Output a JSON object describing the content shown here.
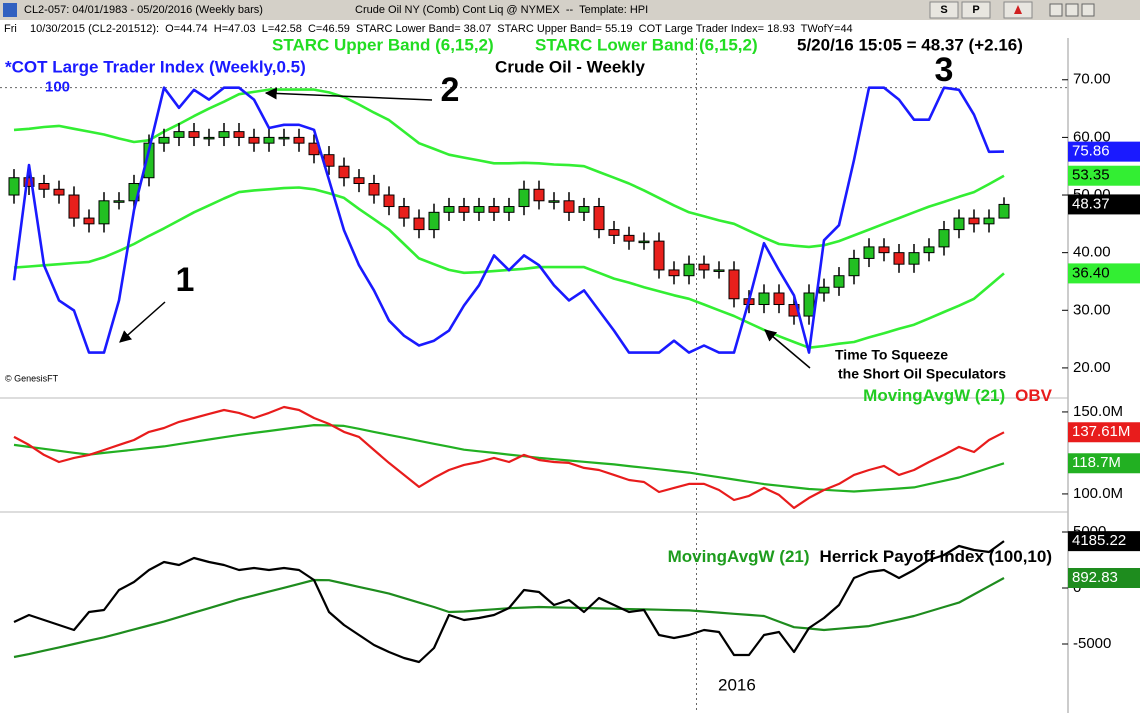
{
  "window": {
    "title": "CL2-057: 04/01/1983 - 05/20/2016 (Weekly bars)",
    "instrument": "Crude Oil NY (Comb) Cont Liq @ NYMEX  --  Template: HPI",
    "buttons": [
      "S",
      "P"
    ]
  },
  "status": {
    "day": "Fri",
    "text": "10/30/2015 (CL2-201512):  O=44.74  H=47.03  L=42.58  C=46.59  STARC Lower Band= 38.07  STARC Upper Band= 55.19  COT Large Trader Index= 18.93  TWofY=44"
  },
  "chart_data": [
    {
      "type": "candlestick",
      "title": "Crude Oil - Weekly",
      "quote": "5/20/16 15:05 = 48.37 (+2.16)",
      "categories": [
        null,
        null,
        null,
        null,
        null,
        null,
        null,
        null,
        null,
        null,
        null,
        null,
        null,
        null,
        null,
        null,
        null,
        null,
        null,
        null,
        null,
        null,
        null,
        null,
        null,
        null,
        null,
        null,
        null,
        null,
        null,
        null,
        null,
        null,
        null,
        null,
        null,
        null,
        null,
        null,
        null,
        null,
        null,
        null,
        null,
        null,
        "2016",
        null,
        null,
        null,
        null,
        null,
        null,
        null,
        null,
        null,
        null,
        null,
        null,
        null,
        null,
        null,
        null,
        null,
        null,
        null,
        null
      ],
      "open": [
        50,
        53,
        52,
        51,
        50,
        46,
        45,
        49,
        49,
        53,
        59,
        60,
        61,
        60,
        60,
        61,
        60,
        59,
        60,
        60,
        59,
        57,
        55,
        53,
        52,
        50,
        48,
        46,
        44,
        47,
        48,
        47,
        48,
        47,
        48,
        51,
        49,
        49,
        47,
        48,
        44,
        43,
        42,
        42,
        37,
        36,
        38,
        37,
        37,
        32,
        31,
        33,
        31,
        29,
        33,
        34,
        36,
        39,
        41,
        40,
        38,
        40,
        41,
        44,
        46,
        45,
        46
      ],
      "high": [
        54.5,
        54.5,
        53.5,
        52.5,
        51.5,
        47.5,
        50.5,
        50.5,
        53.5,
        60.5,
        61.5,
        62.5,
        62.5,
        61.5,
        62.5,
        62.5,
        61.5,
        61.5,
        61.5,
        61.5,
        60.5,
        58.5,
        56.5,
        54.5,
        53.5,
        51.5,
        49.5,
        47.5,
        48.5,
        49.5,
        49.5,
        49.5,
        49.5,
        49.5,
        52.5,
        52.5,
        50.5,
        50.5,
        49.5,
        49.5,
        45.5,
        44.5,
        43.5,
        43.5,
        38.5,
        39.5,
        39.5,
        38.5,
        38.5,
        33.5,
        34.5,
        34.5,
        32.5,
        34.5,
        35.5,
        37.5,
        40.5,
        42.5,
        42.5,
        41.5,
        41.5,
        42.5,
        45.5,
        47.5,
        47.5,
        47.5,
        49.6
      ],
      "low": [
        48.5,
        50,
        49.5,
        48.5,
        44.5,
        43.5,
        43.5,
        47.5,
        47.5,
        51.5,
        57.5,
        58.5,
        58.5,
        58.5,
        58.5,
        58.5,
        57.5,
        57.5,
        58.5,
        57.5,
        55.5,
        53.5,
        51.5,
        50.5,
        48.5,
        46.5,
        44.5,
        42.5,
        42.5,
        45.5,
        45.5,
        45.5,
        45.5,
        45.5,
        46.5,
        47.5,
        47.5,
        45.5,
        45.5,
        42.5,
        41.5,
        40.5,
        40.5,
        35.5,
        34.5,
        34.5,
        35.5,
        35.5,
        30.5,
        29.5,
        29.5,
        29.5,
        27.5,
        27.5,
        31.5,
        32.5,
        34.5,
        37.5,
        38.5,
        36.5,
        36.5,
        38.5,
        39.5,
        42.5,
        43.5,
        43.5,
        46
      ],
      "close": [
        53,
        51.5,
        51,
        50,
        46,
        45,
        49,
        49,
        52,
        59,
        60,
        61,
        60,
        60,
        61,
        60,
        59,
        60,
        60,
        59,
        57,
        55,
        53,
        52,
        50,
        48,
        46,
        44,
        47,
        48,
        47,
        48,
        47,
        48,
        51,
        49,
        49,
        47,
        48,
        44,
        43,
        42,
        42,
        37,
        36,
        38,
        37,
        37,
        32,
        31,
        33,
        31,
        29,
        33,
        34,
        36,
        39,
        41,
        40,
        38,
        40,
        41,
        44,
        46,
        45,
        46,
        48.37
      ],
      "up_color": "#22c022",
      "down_color": "#e8201c",
      "series": [
        {
          "name": "STARC Upper Band (6,15,2)",
          "color": "#33ee33",
          "values": [
            61.3,
            61.5,
            61.8,
            62,
            61.5,
            61,
            60.5,
            59.8,
            59.2,
            59.5,
            61,
            62.3,
            63.7,
            65,
            66.2,
            67.5,
            67.9,
            68.3,
            68.3,
            68.3,
            68.3,
            67.8,
            67,
            65.7,
            64.3,
            63,
            61,
            59,
            58,
            57,
            56.5,
            56,
            55.5,
            55.5,
            55.6,
            55.5,
            55.3,
            55.2,
            55,
            54,
            53,
            52,
            50.8,
            49.5,
            48.2,
            47,
            46.3,
            45.6,
            45,
            43.8,
            42.6,
            41.5,
            41.2,
            41,
            41.3,
            42,
            43,
            44,
            45,
            46,
            47,
            48,
            48.8,
            49.7,
            50.5,
            51.9,
            53.35
          ]
        },
        {
          "name": "STARC Lower Band (6,15,2)",
          "color": "#33ee33",
          "values": [
            37.4,
            37.6,
            37.8,
            38,
            38.2,
            38.4,
            39.2,
            40.3,
            41.5,
            42.9,
            44.2,
            45.6,
            47,
            48.2,
            49.4,
            50.5,
            50.8,
            51,
            51.2,
            51.3,
            51,
            50.3,
            49.5,
            47.6,
            45.8,
            44,
            41.5,
            39,
            38,
            37,
            36.5,
            36.6,
            36.8,
            37,
            37.2,
            37.5,
            37.5,
            37.5,
            37.5,
            36.5,
            35.5,
            34.8,
            34,
            33.3,
            32.6,
            32,
            31,
            30,
            29,
            27.8,
            26.6,
            25.5,
            24.5,
            23.5,
            23.8,
            24.2,
            24.5,
            25.3,
            26,
            26.8,
            27.5,
            28.6,
            29.7,
            30.8,
            32,
            34.2,
            36.4
          ],
          "last_label": "36.40"
        },
        {
          "name": "*COT Large Trader Index (Weekly,0.5)",
          "color": "#1a1aff",
          "axis": "y2",
          "values": [
            27.3,
            70.8,
            33,
            19.7,
            15.9,
            0,
            0,
            19.7,
            53.8,
            76.5,
            100,
            92.4,
            99.2,
            95.5,
            100,
            100,
            95.5,
            84.8,
            86,
            86,
            84.1,
            65.2,
            46.2,
            33,
            23.5,
            12.1,
            6.4,
            2.7,
            4.5,
            8.3,
            17.8,
            25.4,
            36.7,
            31.1,
            36.7,
            33,
            25.4,
            19.7,
            23.5,
            15.9,
            8.3,
            0,
            0,
            0,
            4.5,
            0,
            2.7,
            0,
            0,
            19.7,
            41.3,
            31.1,
            21.6,
            0,
            42.4,
            48.1,
            72.7,
            100,
            100,
            95.5,
            87.9,
            87.9,
            100,
            99.2,
            89.8,
            75.8,
            75.86
          ]
        }
      ],
      "ylim": [
        15.3,
        76.9
      ],
      "yticks": [
        {
          "value": 20,
          "label": "20.00"
        },
        {
          "value": 30,
          "label": "30.00"
        },
        {
          "value": 40,
          "label": "40.00"
        },
        {
          "value": 50,
          "label": "50.00"
        },
        {
          "value": 60,
          "label": "60.00"
        },
        {
          "value": 70,
          "label": "70.00"
        }
      ],
      "y2lim": [
        -16,
        118
      ],
      "y2ticks": [
        100
      ],
      "annotations": [
        "1",
        "2",
        "3",
        "Time To Squeeze",
        "the Short Oil Speculators"
      ],
      "source": "© GenesisFT"
    },
    {
      "type": "line",
      "series": [
        {
          "name": "MovingAvgW (21)",
          "color": "#22b022",
          "values": [
            129.9,
            128.7,
            127.5,
            126.3,
            125.1,
            124,
            125,
            126,
            127,
            128,
            129,
            130.4,
            131.8,
            133.2,
            134.6,
            136,
            137.2,
            138.4,
            139.6,
            140.8,
            142,
            141.8,
            141.5,
            139.7,
            137.8,
            136,
            134.2,
            132.4,
            130.6,
            128.8,
            127,
            126,
            125,
            124,
            123,
            122,
            121.2,
            120.4,
            119.6,
            118.8,
            118,
            117,
            116,
            115,
            114,
            113,
            111.6,
            110.2,
            108.8,
            107.4,
            106,
            105,
            104,
            103,
            102.5,
            102,
            101.5,
            102.1,
            102.7,
            103.3,
            104,
            106,
            108,
            110,
            112.9,
            115.8,
            118.7
          ],
          "last_label": "118.7M"
        },
        {
          "name": "OBV",
          "color": "#e81c1c",
          "values": [
            134.8,
            129.9,
            123.8,
            119.5,
            122,
            123.8,
            126.8,
            129.9,
            132.9,
            137.8,
            140.2,
            143.9,
            146.3,
            148.8,
            151.2,
            149.4,
            146.3,
            149.4,
            153,
            151.2,
            146.3,
            142.7,
            137.8,
            134.8,
            126.8,
            118.9,
            111.6,
            104.3,
            109.8,
            114.6,
            117.7,
            119.5,
            122,
            119.5,
            123.8,
            120.7,
            119.5,
            118.9,
            115.9,
            114.6,
            111.6,
            108.5,
            107.3,
            101.2,
            103.7,
            106.1,
            106.1,
            102.4,
            96.3,
            98.8,
            103.7,
            99.4,
            91.5,
            97.6,
            102.4,
            106.1,
            111.6,
            114.6,
            117.1,
            111.6,
            114.6,
            119.5,
            123.8,
            128.7,
            125.6,
            132.9,
            137.61
          ],
          "last_label": "137.61M"
        }
      ],
      "ylim": [
        90.2,
        158.5
      ],
      "yticks": [
        {
          "value": 100,
          "label": "100.0M"
        },
        {
          "value": 150,
          "label": "150.0M"
        }
      ]
    },
    {
      "type": "line",
      "series": [
        {
          "name": "MovingAvgW (21)",
          "color": "#1e8c1e",
          "values": [
            -6162,
            -5900,
            -5600,
            -5300,
            -5000,
            -4700,
            -4400,
            -4050,
            -3700,
            -3350,
            -3000,
            -2600,
            -2200,
            -1800,
            -1400,
            -1000,
            -660,
            -320,
            20,
            370,
            714,
            700,
            400,
            100,
            -200,
            -500,
            -900,
            -1300,
            -1700,
            -2143,
            -2100,
            -2000,
            -1900,
            -1800,
            -1750,
            -1700,
            -1730,
            -1760,
            -1790,
            -1820,
            -1850,
            -1880,
            -1910,
            -1940,
            -1970,
            -2000,
            -2100,
            -2200,
            -2300,
            -2400,
            -2500,
            -3000,
            -3500,
            -3620,
            -3750,
            -3630,
            -3520,
            -3400,
            -3100,
            -2800,
            -2500,
            -2100,
            -1700,
            -1300,
            -570,
            160,
            892.83
          ]
        },
        {
          "name": "Herrick Payoff Index (100,10)",
          "color": "#000000",
          "values": [
            -3036,
            -2411,
            -2858,
            -3304,
            -3750,
            -2143,
            -1965,
            -179,
            536,
            1607,
            2322,
            2054,
            2679,
            2322,
            2054,
            1607,
            1786,
            1607,
            1786,
            1607,
            714,
            -2143,
            -3304,
            -4197,
            -5090,
            -5715,
            -6251,
            -6608,
            -5358,
            -2411,
            -2858,
            -2679,
            -2411,
            -1786,
            -179,
            -357,
            -1518,
            -1072,
            -2143,
            -893,
            -1518,
            -2143,
            -1965,
            -4197,
            -4465,
            -4197,
            -3750,
            -3929,
            -5983,
            -5983,
            -4197,
            -3929,
            -5715,
            -3572,
            -2679,
            -1518,
            893,
            1429,
            1607,
            893,
            1607,
            2500,
            2947,
            3751,
            3393,
            3215,
            4185.22
          ]
        }
      ],
      "ylim": [
        -10000,
        6518
      ],
      "yticks": [
        -5000,
        0,
        5000
      ]
    }
  ]
}
